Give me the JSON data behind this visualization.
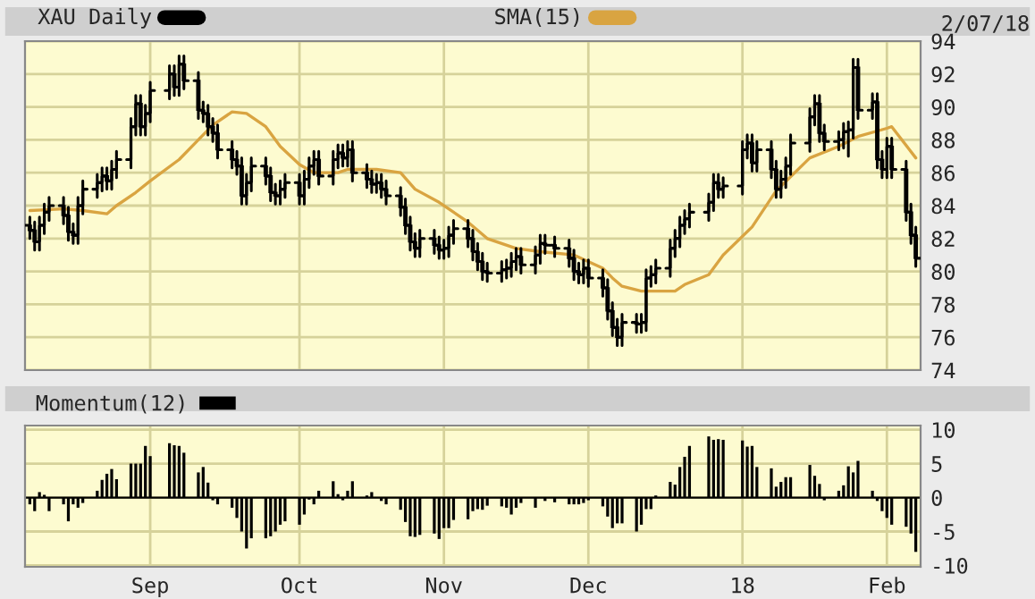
{
  "chart_data": [
    {
      "type": "candlestick",
      "annotations": [
        "2/07/18"
      ],
      "legend": "top left",
      "grid": true,
      "tick_labels": "y",
      "xlim": [
        "2017-08-06",
        "2018-02-08"
      ],
      "xticks": [
        {
          "value": "2017-09-01",
          "label": null
        },
        {
          "value": "2017-10-02",
          "label": null
        },
        {
          "value": "2017-11-01",
          "label": null
        },
        {
          "value": "2017-12-01",
          "label": null
        },
        {
          "value": "2018-01-02",
          "label": null
        },
        {
          "value": "2018-02-01",
          "label": null
        }
      ],
      "ylim": [
        74,
        94
      ],
      "yticks": [
        74,
        76,
        78,
        80,
        82,
        84,
        86,
        88,
        90,
        92,
        94
      ],
      "series": [
        {
          "name": "XAU Daily",
          "type": "candlestick",
          "color": "#000000",
          "x": [
            "2017-08-07",
            "2017-08-08",
            "2017-08-09",
            "2017-08-10",
            "2017-08-11",
            "2017-08-14",
            "2017-08-15",
            "2017-08-16",
            "2017-08-17",
            "2017-08-18",
            "2017-08-21",
            "2017-08-22",
            "2017-08-23",
            "2017-08-24",
            "2017-08-25",
            "2017-08-28",
            "2017-08-29",
            "2017-08-30",
            "2017-08-31",
            "2017-09-01",
            "2017-09-05",
            "2017-09-06",
            "2017-09-07",
            "2017-09-08",
            "2017-09-11",
            "2017-09-12",
            "2017-09-13",
            "2017-09-14",
            "2017-09-15",
            "2017-09-18",
            "2017-09-19",
            "2017-09-20",
            "2017-09-21",
            "2017-09-22",
            "2017-09-25",
            "2017-09-26",
            "2017-09-27",
            "2017-09-28",
            "2017-09-29",
            "2017-10-02",
            "2017-10-03",
            "2017-10-04",
            "2017-10-05",
            "2017-10-06",
            "2017-10-09",
            "2017-10-10",
            "2017-10-11",
            "2017-10-12",
            "2017-10-13",
            "2017-10-16",
            "2017-10-17",
            "2017-10-18",
            "2017-10-19",
            "2017-10-20",
            "2017-10-23",
            "2017-10-24",
            "2017-10-25",
            "2017-10-26",
            "2017-10-27",
            "2017-10-30",
            "2017-10-31",
            "2017-11-01",
            "2017-11-02",
            "2017-11-03",
            "2017-11-06",
            "2017-11-07",
            "2017-11-08",
            "2017-11-09",
            "2017-11-10",
            "2017-11-13",
            "2017-11-14",
            "2017-11-15",
            "2017-11-16",
            "2017-11-17",
            "2017-11-20",
            "2017-11-21",
            "2017-11-22",
            "2017-11-24",
            "2017-11-27",
            "2017-11-28",
            "2017-11-29",
            "2017-11-30",
            "2017-12-01",
            "2017-12-04",
            "2017-12-05",
            "2017-12-06",
            "2017-12-07",
            "2017-12-08",
            "2017-12-11",
            "2017-12-12",
            "2017-12-13",
            "2017-12-14",
            "2017-12-15",
            "2017-12-18",
            "2017-12-19",
            "2017-12-20",
            "2017-12-21",
            "2017-12-22",
            "2017-12-26",
            "2017-12-27",
            "2017-12-28",
            "2017-12-29",
            "2018-01-02",
            "2018-01-03",
            "2018-01-04",
            "2018-01-05",
            "2018-01-08",
            "2018-01-09",
            "2018-01-10",
            "2018-01-11",
            "2018-01-12",
            "2018-01-16",
            "2018-01-17",
            "2018-01-18",
            "2018-01-19",
            "2018-01-22",
            "2018-01-23",
            "2018-01-24",
            "2018-01-25",
            "2018-01-26",
            "2018-01-29",
            "2018-01-30",
            "2018-01-31",
            "2018-02-01",
            "2018-02-02",
            "2018-02-05",
            "2018-02-06",
            "2018-02-07"
          ],
          "ohlc": [
            [
              82.8,
              83.3,
              82.0,
              82.5
            ],
            [
              82.5,
              83.0,
              81.3,
              81.8
            ],
            [
              81.8,
              83.3,
              81.3,
              82.8
            ],
            [
              82.8,
              84.1,
              82.3,
              83.6
            ],
            [
              83.6,
              84.5,
              83.1,
              84.0
            ],
            [
              84.0,
              84.5,
              82.9,
              83.4
            ],
            [
              83.4,
              83.9,
              81.9,
              82.4
            ],
            [
              82.4,
              82.9,
              81.7,
              82.2
            ],
            [
              82.2,
              84.5,
              81.7,
              84.0
            ],
            [
              84.0,
              85.5,
              83.5,
              85.0
            ],
            [
              85.0,
              85.9,
              84.5,
              85.4
            ],
            [
              85.4,
              86.3,
              84.9,
              85.8
            ],
            [
              85.8,
              86.3,
              85.0,
              85.5
            ],
            [
              85.5,
              86.7,
              85.0,
              86.2
            ],
            [
              86.2,
              87.3,
              85.7,
              86.8
            ],
            [
              86.8,
              89.3,
              86.3,
              88.8
            ],
            [
              88.8,
              90.7,
              88.3,
              90.2
            ],
            [
              90.2,
              90.7,
              88.3,
              88.8
            ],
            [
              88.8,
              90.1,
              88.3,
              89.6
            ],
            [
              89.6,
              91.5,
              89.1,
              91.0
            ],
            [
              91.0,
              92.5,
              90.5,
              92.0
            ],
            [
              92.0,
              92.5,
              90.7,
              91.2
            ],
            [
              91.2,
              93.1,
              90.7,
              92.6
            ],
            [
              92.6,
              93.1,
              91.1,
              91.6
            ],
            [
              91.6,
              92.1,
              89.3,
              89.8
            ],
            [
              89.8,
              90.3,
              89.1,
              89.6
            ],
            [
              89.6,
              90.1,
              88.3,
              88.8
            ],
            [
              88.8,
              89.3,
              87.9,
              88.4
            ],
            [
              88.4,
              88.9,
              86.9,
              87.4
            ],
            [
              87.4,
              87.9,
              86.3,
              86.8
            ],
            [
              86.8,
              87.3,
              85.9,
              86.4
            ],
            [
              86.4,
              86.9,
              84.1,
              84.6
            ],
            [
              84.6,
              85.9,
              84.1,
              85.4
            ],
            [
              85.4,
              86.9,
              84.9,
              86.4
            ],
            [
              86.4,
              86.9,
              85.3,
              85.8
            ],
            [
              85.8,
              86.3,
              84.3,
              84.8
            ],
            [
              84.8,
              85.3,
              84.1,
              84.6
            ],
            [
              84.6,
              85.5,
              84.1,
              85.0
            ],
            [
              85.0,
              85.9,
              84.5,
              85.4
            ],
            [
              85.4,
              85.9,
              84.1,
              84.6
            ],
            [
              84.6,
              86.1,
              84.1,
              85.6
            ],
            [
              85.6,
              86.9,
              85.1,
              86.4
            ],
            [
              86.4,
              87.3,
              85.9,
              86.8
            ],
            [
              86.8,
              87.3,
              85.3,
              85.8
            ],
            [
              85.8,
              87.3,
              85.3,
              86.8
            ],
            [
              86.8,
              87.7,
              86.3,
              87.2
            ],
            [
              87.2,
              87.7,
              86.4,
              86.9
            ],
            [
              86.9,
              87.9,
              86.4,
              87.4
            ],
            [
              87.4,
              87.9,
              85.5,
              86.0
            ],
            [
              86.0,
              86.5,
              85.1,
              85.6
            ],
            [
              85.6,
              86.1,
              84.8,
              85.3
            ],
            [
              85.3,
              85.9,
              84.8,
              85.4
            ],
            [
              85.4,
              85.9,
              84.5,
              85.0
            ],
            [
              85.0,
              85.5,
              84.1,
              84.6
            ],
            [
              84.6,
              85.1,
              83.4,
              83.9
            ],
            [
              83.9,
              84.4,
              82.3,
              82.8
            ],
            [
              82.8,
              83.3,
              81.3,
              81.8
            ],
            [
              81.8,
              82.3,
              80.9,
              81.4
            ],
            [
              81.4,
              82.5,
              80.9,
              82.0
            ],
            [
              82.0,
              82.5,
              81.1,
              81.6
            ],
            [
              81.6,
              82.1,
              80.8,
              81.3
            ],
            [
              81.3,
              81.9,
              80.8,
              81.4
            ],
            [
              81.4,
              82.7,
              80.9,
              82.2
            ],
            [
              82.2,
              83.1,
              81.7,
              82.6
            ],
            [
              82.6,
              83.1,
              81.5,
              82.0
            ],
            [
              82.0,
              82.5,
              80.7,
              81.2
            ],
            [
              81.2,
              81.7,
              80.1,
              80.6
            ],
            [
              80.6,
              81.1,
              79.5,
              80.0
            ],
            [
              80.0,
              80.5,
              79.4,
              79.9
            ],
            [
              79.9,
              80.6,
              79.4,
              80.1
            ],
            [
              80.1,
              80.7,
              79.6,
              80.2
            ],
            [
              80.2,
              81.1,
              79.7,
              80.6
            ],
            [
              80.6,
              81.4,
              80.1,
              80.9
            ],
            [
              80.9,
              81.4,
              79.9,
              80.4
            ],
            [
              80.4,
              81.5,
              79.9,
              81.0
            ],
            [
              81.0,
              82.2,
              80.5,
              81.7
            ],
            [
              81.7,
              82.2,
              81.1,
              81.6
            ],
            [
              81.6,
              82.1,
              80.9,
              81.4
            ],
            [
              81.4,
              81.9,
              80.3,
              80.8
            ],
            [
              80.8,
              81.3,
              79.5,
              80.0
            ],
            [
              80.0,
              80.5,
              79.3,
              79.8
            ],
            [
              79.8,
              80.7,
              79.3,
              80.2
            ],
            [
              80.2,
              80.7,
              79.1,
              79.6
            ],
            [
              79.6,
              80.1,
              78.5,
              79.0
            ],
            [
              79.0,
              79.5,
              77.1,
              77.6
            ],
            [
              77.6,
              78.1,
              76.1,
              76.6
            ],
            [
              76.6,
              77.1,
              75.5,
              76.0
            ],
            [
              76.0,
              77.4,
              75.5,
              76.9
            ],
            [
              76.9,
              77.4,
              76.3,
              76.8
            ],
            [
              76.8,
              77.4,
              76.3,
              76.9
            ],
            [
              76.9,
              80.1,
              76.4,
              79.6
            ],
            [
              79.6,
              80.3,
              79.1,
              79.8
            ],
            [
              79.8,
              80.7,
              79.3,
              80.2
            ],
            [
              80.2,
              81.9,
              79.7,
              81.4
            ],
            [
              81.4,
              82.5,
              80.9,
              82.0
            ],
            [
              82.0,
              83.3,
              81.5,
              82.8
            ],
            [
              82.8,
              83.7,
              82.3,
              83.2
            ],
            [
              83.2,
              84.1,
              82.7,
              83.6
            ],
            [
              83.6,
              84.7,
              83.1,
              84.2
            ],
            [
              84.2,
              85.9,
              83.7,
              85.4
            ],
            [
              85.4,
              85.9,
              84.5,
              85.0
            ],
            [
              85.0,
              85.7,
              84.5,
              85.2
            ],
            [
              85.2,
              87.9,
              84.7,
              87.4
            ],
            [
              87.4,
              88.3,
              86.9,
              87.8
            ],
            [
              87.8,
              88.3,
              86.1,
              86.6
            ],
            [
              86.6,
              87.9,
              86.1,
              87.4
            ],
            [
              87.4,
              87.9,
              85.7,
              86.2
            ],
            [
              86.2,
              86.7,
              84.5,
              85.0
            ],
            [
              85.0,
              86.1,
              84.5,
              85.6
            ],
            [
              85.6,
              86.9,
              85.1,
              86.4
            ],
            [
              86.4,
              88.3,
              85.9,
              87.8
            ],
            [
              87.8,
              89.9,
              87.3,
              89.4
            ],
            [
              89.4,
              90.7,
              88.9,
              90.2
            ],
            [
              90.2,
              90.7,
              87.9,
              88.4
            ],
            [
              88.4,
              88.9,
              87.4,
              87.9
            ],
            [
              87.9,
              88.5,
              87.4,
              88.0
            ],
            [
              88.0,
              89.0,
              87.5,
              88.5
            ],
            [
              88.5,
              89.1,
              87.0,
              88.6
            ],
            [
              88.6,
              92.9,
              88.1,
              92.4
            ],
            [
              92.4,
              92.9,
              89.3,
              89.8
            ],
            [
              89.8,
              90.8,
              89.3,
              90.3
            ],
            [
              90.3,
              90.8,
              86.3,
              86.8
            ],
            [
              86.8,
              87.3,
              85.7,
              86.2
            ],
            [
              86.2,
              88.1,
              85.7,
              87.6
            ],
            [
              87.6,
              88.1,
              85.7,
              86.2
            ],
            [
              86.2,
              86.7,
              83.1,
              83.6
            ],
            [
              83.6,
              84.1,
              81.7,
              82.2
            ],
            [
              82.2,
              82.7,
              80.3,
              80.8
            ]
          ]
        },
        {
          "name": "SMA(15)",
          "type": "line",
          "color": "#d9a441",
          "x": [
            "2017-08-07",
            "2017-08-14",
            "2017-08-18",
            "2017-08-23",
            "2017-08-25",
            "2017-08-29",
            "2017-09-01",
            "2017-09-07",
            "2017-09-11",
            "2017-09-14",
            "2017-09-18",
            "2017-09-21",
            "2017-09-25",
            "2017-09-28",
            "2017-10-02",
            "2017-10-05",
            "2017-10-10",
            "2017-10-12",
            "2017-10-18",
            "2017-10-23",
            "2017-10-26",
            "2017-10-31",
            "2017-11-06",
            "2017-11-10",
            "2017-11-16",
            "2017-11-21",
            "2017-11-28",
            "2017-12-04",
            "2017-12-06",
            "2017-12-08",
            "2017-12-12",
            "2017-12-19",
            "2017-12-21",
            "2017-12-26",
            "2017-12-29",
            "2018-01-04",
            "2018-01-09",
            "2018-01-16",
            "2018-01-22",
            "2018-01-26",
            "2018-02-01",
            "2018-02-02",
            "2018-02-07"
          ],
          "values": [
            83.7,
            83.8,
            83.7,
            83.5,
            84.0,
            84.8,
            85.5,
            86.8,
            88.0,
            88.9,
            89.7,
            89.6,
            88.8,
            87.6,
            86.5,
            86.0,
            86.0,
            86.2,
            86.2,
            86.0,
            85.0,
            84.2,
            83.0,
            82.0,
            81.4,
            81.2,
            81.0,
            80.2,
            79.6,
            79.1,
            78.8,
            78.8,
            79.2,
            79.8,
            81.0,
            82.7,
            84.9,
            86.9,
            87.6,
            88.2,
            88.7,
            88.8,
            86.9
          ]
        }
      ]
    },
    {
      "type": "bar",
      "legend": "top left",
      "grid": true,
      "xlim": [
        "2017-08-06",
        "2018-02-08"
      ],
      "xticks": [
        {
          "value": "2017-09-01",
          "label": "Sep"
        },
        {
          "value": "2017-10-02",
          "label": "Oct"
        },
        {
          "value": "2017-11-01",
          "label": "Nov"
        },
        {
          "value": "2017-12-01",
          "label": "Dec"
        },
        {
          "value": "2018-01-02",
          "label": "18"
        },
        {
          "value": "2018-02-01",
          "label": "Feb"
        }
      ],
      "ylim": [
        -10.2,
        10.6
      ],
      "yticks": [
        {
          "value": -10,
          "label": "-10"
        },
        {
          "value": -5,
          "label": "-5"
        },
        0,
        5,
        10
      ],
      "series": [
        {
          "name": "Momentum(12)",
          "color": "#000000",
          "x": [
            "2017-08-07",
            "2017-08-08",
            "2017-08-09",
            "2017-08-10",
            "2017-08-11",
            "2017-08-14",
            "2017-08-15",
            "2017-08-16",
            "2017-08-17",
            "2017-08-18",
            "2017-08-21",
            "2017-08-22",
            "2017-08-23",
            "2017-08-24",
            "2017-08-25",
            "2017-08-28",
            "2017-08-29",
            "2017-08-30",
            "2017-08-31",
            "2017-09-01",
            "2017-09-05",
            "2017-09-06",
            "2017-09-07",
            "2017-09-08",
            "2017-09-11",
            "2017-09-12",
            "2017-09-13",
            "2017-09-14",
            "2017-09-15",
            "2017-09-18",
            "2017-09-19",
            "2017-09-20",
            "2017-09-21",
            "2017-09-22",
            "2017-09-25",
            "2017-09-26",
            "2017-09-27",
            "2017-09-28",
            "2017-09-29",
            "2017-10-02",
            "2017-10-03",
            "2017-10-04",
            "2017-10-05",
            "2017-10-06",
            "2017-10-09",
            "2017-10-10",
            "2017-10-11",
            "2017-10-12",
            "2017-10-13",
            "2017-10-16",
            "2017-10-17",
            "2017-10-18",
            "2017-10-19",
            "2017-10-20",
            "2017-10-23",
            "2017-10-24",
            "2017-10-25",
            "2017-10-26",
            "2017-10-27",
            "2017-10-30",
            "2017-10-31",
            "2017-11-01",
            "2017-11-02",
            "2017-11-03",
            "2017-11-06",
            "2017-11-07",
            "2017-11-08",
            "2017-11-09",
            "2017-11-10",
            "2017-11-13",
            "2017-11-14",
            "2017-11-15",
            "2017-11-16",
            "2017-11-17",
            "2017-11-20",
            "2017-11-21",
            "2017-11-22",
            "2017-11-24",
            "2017-11-27",
            "2017-11-28",
            "2017-11-29",
            "2017-11-30",
            "2017-12-01",
            "2017-12-04",
            "2017-12-05",
            "2017-12-06",
            "2017-12-07",
            "2017-12-08",
            "2017-12-11",
            "2017-12-12",
            "2017-12-13",
            "2017-12-14",
            "2017-12-15",
            "2017-12-18",
            "2017-12-19",
            "2017-12-20",
            "2017-12-21",
            "2017-12-22",
            "2017-12-26",
            "2017-12-27",
            "2017-12-28",
            "2017-12-29",
            "2018-01-02",
            "2018-01-03",
            "2018-01-04",
            "2018-01-05",
            "2018-01-08",
            "2018-01-09",
            "2018-01-10",
            "2018-01-11",
            "2018-01-12",
            "2018-01-16",
            "2018-01-17",
            "2018-01-18",
            "2018-01-19",
            "2018-01-22",
            "2018-01-23",
            "2018-01-24",
            "2018-01-25",
            "2018-01-26",
            "2018-01-29",
            "2018-01-30",
            "2018-01-31",
            "2018-02-01",
            "2018-02-02",
            "2018-02-05",
            "2018-02-06",
            "2018-02-07"
          ],
          "values": [
            -1,
            -2,
            0.8,
            0.4,
            -2,
            -1,
            -3.5,
            -1,
            -1.5,
            -0.8,
            1,
            2.6,
            3.5,
            4.2,
            2.7,
            5,
            5,
            5,
            7.6,
            6.1,
            8,
            7.7,
            7.6,
            6.6,
            3.7,
            4.5,
            2.2,
            -0.4,
            -1,
            -1.5,
            -3,
            -5,
            -7.5,
            -6,
            -6,
            -5.7,
            -5,
            -4,
            -3.5,
            -4,
            -2.5,
            -0.3,
            -1,
            1,
            2.4,
            0.5,
            -0.4,
            1,
            2.4,
            0.3,
            0.8,
            0,
            -0.5,
            -1,
            -1.8,
            -3.6,
            -5.7,
            -5.8,
            -5.5,
            -5.3,
            -6.1,
            -4.5,
            -4.5,
            -3.3,
            -3.2,
            -2,
            -1.7,
            -1.8,
            -1.2,
            -1.3,
            -1.5,
            -2.5,
            -1.5,
            -0.8,
            -1.5,
            0,
            -0.5,
            -0.7,
            -1,
            -1,
            -1,
            -0.8,
            -0.4,
            -1.3,
            -2.8,
            -4.5,
            -3.8,
            -3.8,
            -5,
            -4,
            -1.7,
            -1.7,
            0.3,
            2.3,
            1.9,
            4.5,
            6,
            7.6,
            9,
            8.5,
            8.6,
            8.5,
            8.4,
            7.5,
            7.6,
            4.5,
            4.3,
            1.6,
            2.3,
            3,
            3,
            4.8,
            3.2,
            2,
            -0.4,
            1,
            1.8,
            4.6,
            3.7,
            5.4,
            1,
            -0.5,
            -2,
            -3,
            -4,
            -4.3,
            -5.3,
            -8
          ]
        }
      ]
    }
  ]
}
